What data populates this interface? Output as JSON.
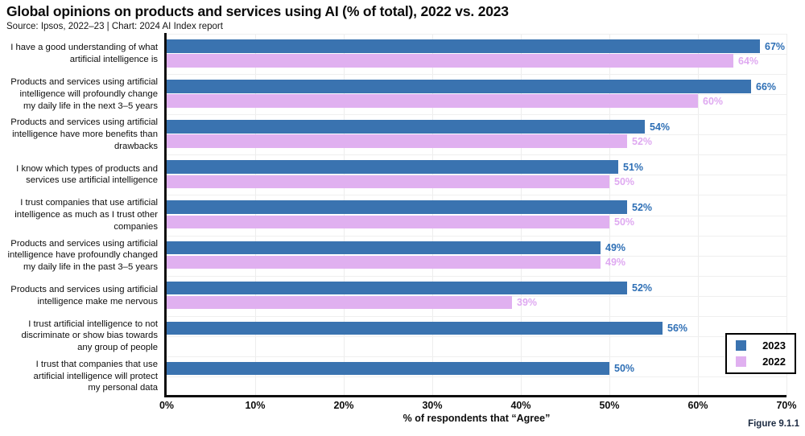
{
  "header": {
    "title": "Global opinions on products and services using AI (% of total), 2022 vs. 2023",
    "subtitle": "Source: Ipsos, 2022–23 | Chart: 2024 AI Index report"
  },
  "figure_label": "Figure 9.1.1",
  "chart_data": {
    "type": "bar",
    "orientation": "horizontal",
    "title": "Global opinions on products and services using AI (% of total), 2022 vs. 2023",
    "xlabel": "% of respondents that “Agree”",
    "xlim": [
      0,
      70
    ],
    "xtick_values": [
      0,
      10,
      20,
      30,
      40,
      50,
      60,
      70
    ],
    "xtick_labels": [
      "0%",
      "10%",
      "20%",
      "30%",
      "40%",
      "50%",
      "60%",
      "70%"
    ],
    "grid": true,
    "legend_position": "bottom-right",
    "value_suffix": "%",
    "categories": [
      "I have a good understanding of what\nartificial intelligence is",
      "Products and services using artificial\nintelligence will profoundly change\nmy daily life in the next 3–5 years",
      "Products and services using artificial\nintelligence have more benefits than\ndrawbacks",
      "I know which types of products and\nservices use artificial intelligence",
      "I trust companies that use artificial\nintelligence as much as I trust other\ncompanies",
      "Products and services using artificial\nintelligence have profoundly changed\nmy daily life in the past 3–5 years",
      "Products and services using artificial\nintelligence make me nervous",
      "I trust artificial intelligence to not\ndiscriminate or show bias towards\nany group of people",
      "I trust that companies that use\nartificial intelligence will protect\nmy personal data"
    ],
    "series": [
      {
        "name": "2023",
        "color": "#3A73B0",
        "label_color": "#2E6FB5",
        "values": [
          67,
          66,
          54,
          51,
          52,
          49,
          52,
          56,
          50
        ]
      },
      {
        "name": "2022",
        "color": "#E0B0F0",
        "label_color": "#DFA9F1",
        "values": [
          64,
          60,
          52,
          50,
          50,
          49,
          39,
          null,
          null
        ]
      }
    ]
  },
  "colors": {
    "axis": "#0d0d0d",
    "grid": "#ededed"
  }
}
